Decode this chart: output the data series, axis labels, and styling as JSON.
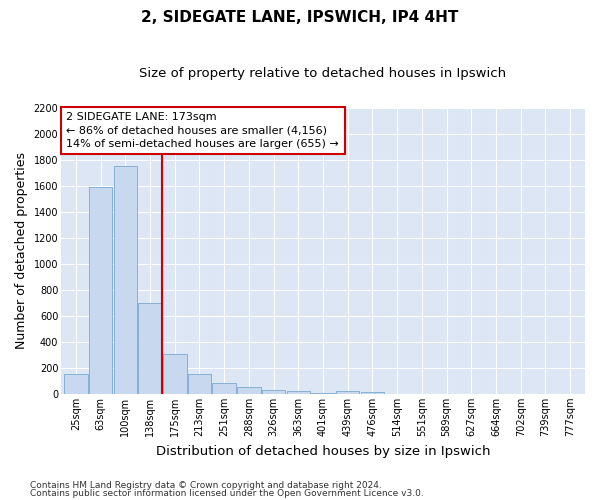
{
  "title": "2, SIDEGATE LANE, IPSWICH, IP4 4HT",
  "subtitle": "Size of property relative to detached houses in Ipswich",
  "xlabel": "Distribution of detached houses by size in Ipswich",
  "ylabel": "Number of detached properties",
  "footnote1": "Contains HM Land Registry data © Crown copyright and database right 2024.",
  "footnote2": "Contains public sector information licensed under the Open Government Licence v3.0.",
  "categories": [
    "25sqm",
    "63sqm",
    "100sqm",
    "138sqm",
    "175sqm",
    "213sqm",
    "251sqm",
    "288sqm",
    "326sqm",
    "363sqm",
    "401sqm",
    "439sqm",
    "476sqm",
    "514sqm",
    "551sqm",
    "589sqm",
    "627sqm",
    "664sqm",
    "702sqm",
    "739sqm",
    "777sqm"
  ],
  "values": [
    155,
    1590,
    1755,
    700,
    310,
    155,
    85,
    50,
    30,
    20,
    10,
    20,
    15,
    0,
    0,
    0,
    0,
    0,
    0,
    0,
    0
  ],
  "bar_color": "#c8d8ee",
  "bar_edge_color": "#7aaad0",
  "vline_x_index": 4,
  "vline_color": "#cc0000",
  "annotation_line1": "2 SIDEGATE LANE: 173sqm",
  "annotation_line2": "← 86% of detached houses are smaller (4,156)",
  "annotation_line3": "14% of semi-detached houses are larger (655) →",
  "annotation_box_color": "#ffffff",
  "annotation_border_color": "#cc0000",
  "ylim": [
    0,
    2200
  ],
  "yticks": [
    0,
    200,
    400,
    600,
    800,
    1000,
    1200,
    1400,
    1600,
    1800,
    2000,
    2200
  ],
  "fig_bg_color": "#ffffff",
  "plot_bg_color": "#dce6f5",
  "grid_color": "#ffffff",
  "title_fontsize": 11,
  "subtitle_fontsize": 9.5,
  "axis_label_fontsize": 9,
  "tick_fontsize": 7,
  "footnote_fontsize": 6.5,
  "annotation_fontsize": 8
}
